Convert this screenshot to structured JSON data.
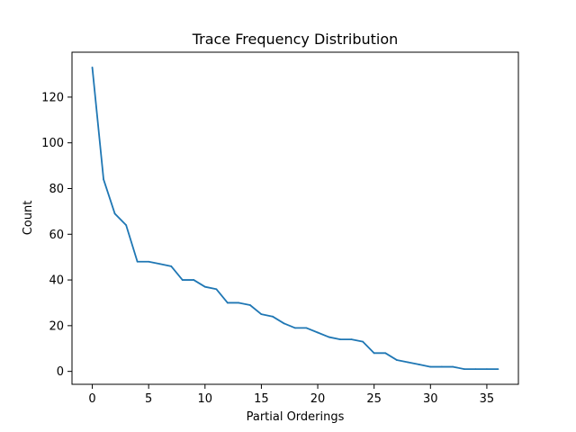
{
  "chart_data": {
    "type": "line",
    "title": "Trace Frequency Distribution",
    "xlabel": "Partial Orderings",
    "ylabel": "Count",
    "xlim": [
      -1.8,
      37.8
    ],
    "ylim": [
      -5.65,
      139.65
    ],
    "xticks": [
      0,
      5,
      10,
      15,
      20,
      25,
      30,
      35
    ],
    "yticks": [
      0,
      20,
      40,
      60,
      80,
      100,
      120
    ],
    "grid": false,
    "legend": "none",
    "colors": {
      "line": "#1f77b4",
      "axes": "#000000",
      "background": "#ffffff"
    },
    "series": [
      {
        "x": [
          0,
          1,
          2,
          3,
          4,
          5,
          6,
          7,
          8,
          9,
          10,
          11,
          12,
          13,
          14,
          15,
          16,
          17,
          18,
          19,
          20,
          21,
          22,
          23,
          24,
          25,
          26,
          27,
          28,
          29,
          30,
          31,
          32,
          33,
          34,
          35,
          36
        ],
        "values": [
          133,
          84,
          69,
          64,
          48,
          48,
          47,
          46,
          40,
          40,
          37,
          36,
          30,
          30,
          29,
          25,
          24,
          21,
          19,
          19,
          17,
          15,
          14,
          14,
          13,
          8,
          8,
          5,
          4,
          3,
          2,
          2,
          2,
          1,
          1,
          1,
          1
        ]
      }
    ]
  }
}
